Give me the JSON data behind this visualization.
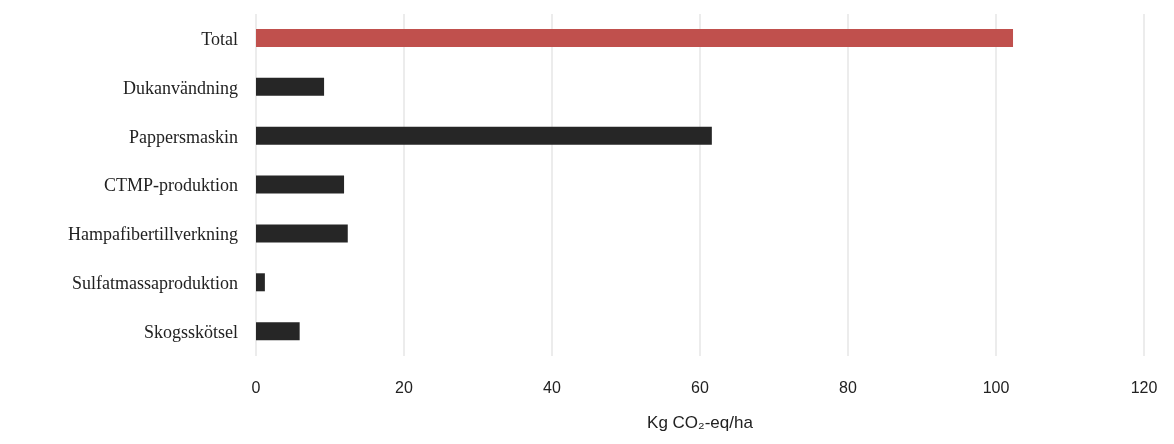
{
  "chart_data": {
    "type": "bar",
    "orientation": "horizontal",
    "categories": [
      "Total",
      "Dukanvändning",
      "Pappersmaskin",
      "CTMP-produktion",
      "Hampafibertillverkning",
      "Sulfatmassaproduktion",
      "Skogsskötsel"
    ],
    "values": [
      102.3,
      9.2,
      61.6,
      11.9,
      12.4,
      1.2,
      5.9
    ],
    "colors": [
      "#c0504d",
      "#262626",
      "#262626",
      "#262626",
      "#262626",
      "#262626",
      "#262626"
    ],
    "xlabel": "Kg CO₂-eq/ha",
    "xlim": [
      0,
      120
    ],
    "xticks": [
      0,
      20,
      40,
      60,
      80,
      100,
      120
    ],
    "grid": "x",
    "legend": false
  }
}
